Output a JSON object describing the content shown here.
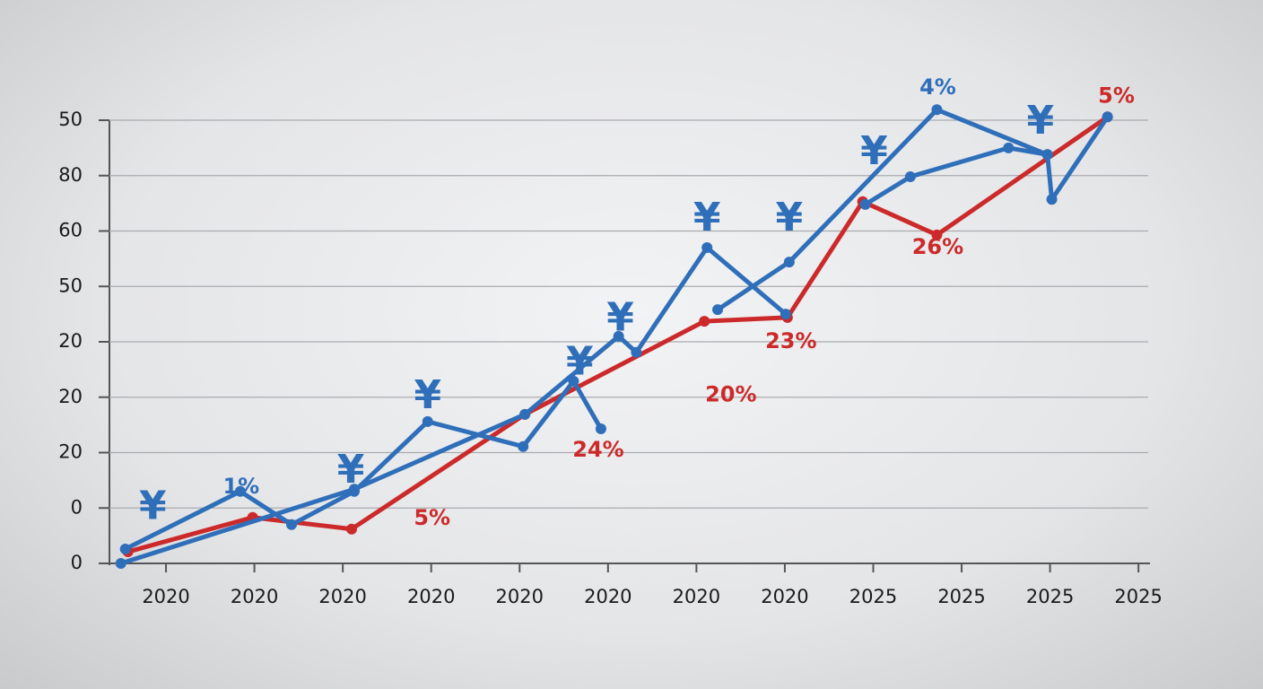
{
  "chart_data": {
    "type": "line",
    "xlim": [
      -0.66,
      11.11
    ],
    "ylim": [
      0,
      8
    ],
    "xticks": [
      {
        "value": 0,
        "label": "2020"
      },
      {
        "value": 1,
        "label": "2020"
      },
      {
        "value": 2,
        "label": "2020"
      },
      {
        "value": 3,
        "label": "2020"
      },
      {
        "value": 4,
        "label": "2020"
      },
      {
        "value": 5,
        "label": "2020"
      },
      {
        "value": 6,
        "label": "2020"
      },
      {
        "value": 7,
        "label": "2020"
      },
      {
        "value": 8,
        "label": "2025"
      },
      {
        "value": 9,
        "label": "2025"
      },
      {
        "value": 10,
        "label": "2025"
      },
      {
        "value": 11,
        "label": "2025"
      }
    ],
    "yticks": [
      {
        "value": 0,
        "label": "0"
      },
      {
        "value": 1,
        "label": "0"
      },
      {
        "value": 2,
        "label": "20"
      },
      {
        "value": 3,
        "label": "20"
      },
      {
        "value": 4,
        "label": "20"
      },
      {
        "value": 5,
        "label": "50"
      },
      {
        "value": 6,
        "label": "60"
      },
      {
        "value": 7,
        "label": "80"
      },
      {
        "value": 8,
        "label": "50"
      }
    ],
    "grid": true,
    "series": [
      {
        "color": "#cc2a2a",
        "x": [
          -0.43,
          0.98,
          2.1,
          4.06,
          6.09,
          7.03,
          7.88,
          8.72,
          10.65
        ],
        "values": [
          0.21,
          0.83,
          0.62,
          2.69,
          4.37,
          4.44,
          6.53,
          5.93,
          8.06
        ]
      },
      {
        "color": "#2f6fba",
        "x": [
          -0.46,
          0.84,
          1.42,
          2.13,
          2.96,
          4.04,
          4.61,
          4.92
        ],
        "values": [
          0.26,
          1.3,
          0.7,
          1.3,
          2.56,
          2.11,
          3.29,
          2.43
        ]
      },
      {
        "color": "#2f6fba",
        "x": [
          -0.51,
          2.13,
          4.06,
          5.12,
          5.32,
          6.12,
          7.01
        ],
        "values": [
          0,
          1.34,
          2.69,
          4.1,
          3.81,
          5.7,
          4.5
        ]
      },
      {
        "color": "#2f6fba",
        "x": [
          6.24,
          7.05,
          8.72,
          9.97,
          10.02,
          10.65
        ],
        "values": [
          4.58,
          5.44,
          8.19,
          7.38,
          6.57,
          8.06
        ]
      },
      {
        "color": "#2f6fba",
        "x": [
          7.91,
          8.42,
          9.53,
          9.97
        ],
        "values": [
          6.48,
          6.98,
          7.5,
          7.38
        ]
      }
    ],
    "annotations": [
      {
        "text": "¥",
        "x": -0.15,
        "y": 1.0,
        "color": "#2f6fba"
      },
      {
        "text": "¥",
        "x": 2.09,
        "y": 1.65,
        "color": "#2f6fba"
      },
      {
        "text": "¥",
        "x": 2.96,
        "y": 3.0,
        "color": "#2f6fba"
      },
      {
        "text": "¥",
        "x": 4.68,
        "y": 3.6,
        "color": "#2f6fba"
      },
      {
        "text": "¥",
        "x": 5.14,
        "y": 4.4,
        "color": "#2f6fba"
      },
      {
        "text": "¥",
        "x": 6.12,
        "y": 6.2,
        "color": "#2f6fba"
      },
      {
        "text": "¥",
        "x": 7.05,
        "y": 6.2,
        "color": "#2f6fba"
      },
      {
        "text": "¥",
        "x": 8.01,
        "y": 7.4,
        "color": "#2f6fba"
      },
      {
        "text": "¥",
        "x": 9.89,
        "y": 7.95,
        "color": "#2f6fba"
      },
      {
        "text": "1%",
        "x": 0.85,
        "y": 1.38,
        "color": "#2f6fba"
      },
      {
        "text": "4%",
        "x": 8.73,
        "y": 8.58,
        "color": "#2f6fba"
      },
      {
        "text": "5%",
        "x": 3.01,
        "y": 0.81,
        "color": "#cc2a2a"
      },
      {
        "text": "24%",
        "x": 4.89,
        "y": 2.04,
        "color": "#cc2a2a"
      },
      {
        "text": "20%",
        "x": 6.39,
        "y": 3.04,
        "color": "#cc2a2a"
      },
      {
        "text": "23%",
        "x": 7.07,
        "y": 4.0,
        "color": "#cc2a2a"
      },
      {
        "text": "26%",
        "x": 8.73,
        "y": 5.7,
        "color": "#cc2a2a"
      },
      {
        "text": "5%",
        "x": 10.75,
        "y": 8.43,
        "color": "#cc2a2a"
      }
    ]
  }
}
